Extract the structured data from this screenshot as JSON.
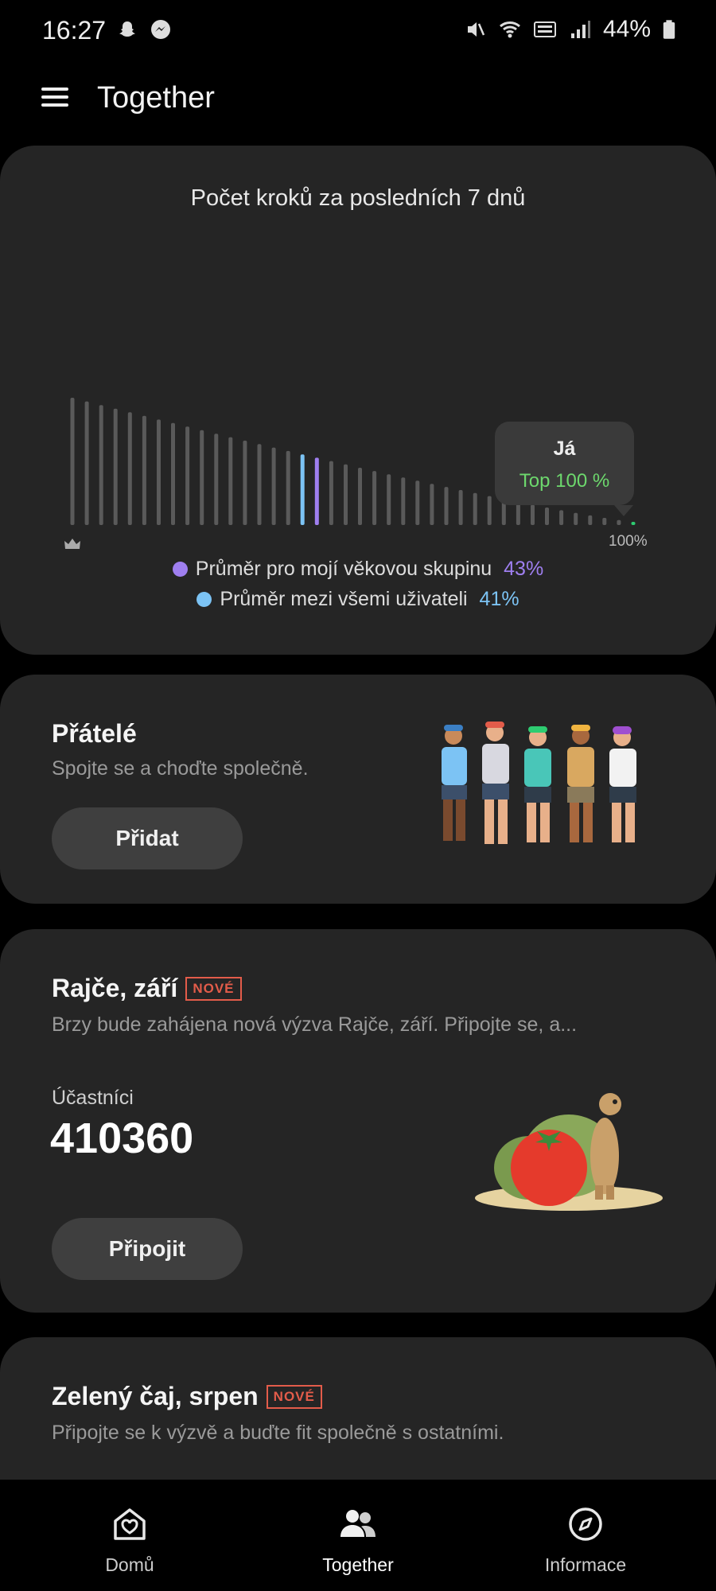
{
  "status_bar": {
    "time": "16:27",
    "battery": "44%",
    "icons": [
      "snapchat-icon",
      "messenger-icon",
      "mute-icon",
      "wifi-icon",
      "volte-icon",
      "signal-icon",
      "battery-icon"
    ]
  },
  "app_bar": {
    "title": "Together",
    "menu_icon": "menu-icon"
  },
  "steps_card": {
    "title": "Počet kroků za posledních 7 dnů",
    "tooltip_name": "Já",
    "tooltip_rank": "Top 100 %",
    "end_label": "100%",
    "legend": [
      {
        "label": "Průměr pro mojí věkovou skupinu",
        "value": "43%",
        "color": "#9f7ff0"
      },
      {
        "label": "Průměr mezi všemi uživateli",
        "value": "41%",
        "color": "#7cc3f4"
      }
    ]
  },
  "chart_data": {
    "type": "bar",
    "title": "Počet kroků za posledních 7 dnů",
    "bars": 40,
    "highlight": {
      "age_group_avg_percentile": 43,
      "all_users_avg_percentile": 41,
      "me_percentile": 100
    },
    "colors": {
      "default": "#5a5a5a",
      "age_group": "#9f7ff0",
      "all_users": "#7cc3f4",
      "me": "#2ecc71"
    }
  },
  "friends_card": {
    "title": "Přátelé",
    "subtitle": "Spojte se a choďte společně.",
    "button": "Přidat"
  },
  "challenge1": {
    "title": "Rajče, září",
    "badge": "NOVÉ",
    "subtitle": "Brzy bude zahájena nová výzva Rajče, září. Připojte se, a...",
    "participants_label": "Účastníci",
    "participants_count": "410360",
    "button": "Připojit"
  },
  "challenge2": {
    "title": "Zelený čaj, srpen",
    "badge": "NOVÉ",
    "subtitle": "Připojte se k výzvě a buďte fit společně s ostatními."
  },
  "bottom_nav": [
    {
      "label": "Domů",
      "icon": "home-heart-icon"
    },
    {
      "label": "Together",
      "icon": "people-icon"
    },
    {
      "label": "Informace",
      "icon": "compass-icon"
    }
  ],
  "colors": {
    "background": "#000000",
    "card": "#252525",
    "accent_green": "#6dd86d",
    "badge_red": "#e35c4a"
  }
}
